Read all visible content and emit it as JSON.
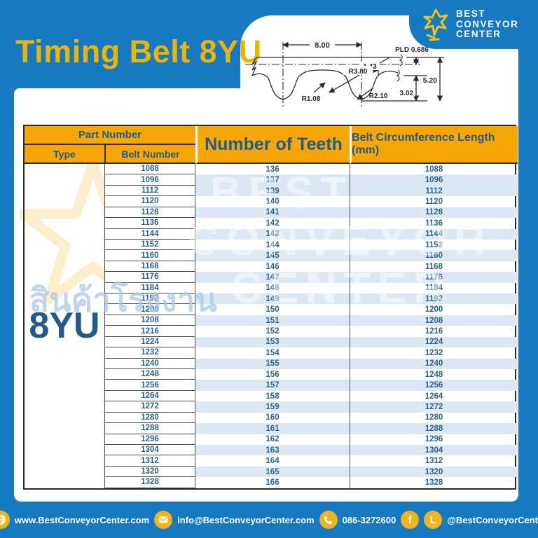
{
  "page": {
    "title": "Timing Belt 8YU"
  },
  "logo": {
    "icon": "star-figure-icon",
    "line1": "Best",
    "line2": "Conveyor",
    "line3": "Center"
  },
  "diagram": {
    "pitch": "8.00",
    "tip_width": "1.43",
    "pld": "PLD 0.686",
    "radius_flank": "R3.80",
    "radius_shoulder": "R1.08",
    "radius_root": "R2.10",
    "tooth_height": "3.02",
    "belt_height": "5.20"
  },
  "table": {
    "headers": {
      "part_number": "Part Number",
      "type": "Type",
      "belt_number": "Belt Number",
      "teeth": "Number of Teeth",
      "length": "Belt Circumference Length (mm)"
    },
    "type_value": "8YU",
    "rows": [
      [
        1088,
        136,
        1088
      ],
      [
        1096,
        137,
        1096
      ],
      [
        1112,
        139,
        1112
      ],
      [
        1120,
        140,
        1120
      ],
      [
        1128,
        141,
        1128
      ],
      [
        1136,
        142,
        1136
      ],
      [
        1144,
        143,
        1144
      ],
      [
        1152,
        144,
        1152
      ],
      [
        1160,
        145,
        1160
      ],
      [
        1168,
        146,
        1168
      ],
      [
        1176,
        147,
        1176
      ],
      [
        1184,
        148,
        1184
      ],
      [
        1192,
        149,
        1192
      ],
      [
        1200,
        150,
        1200
      ],
      [
        1208,
        151,
        1208
      ],
      [
        1216,
        152,
        1216
      ],
      [
        1224,
        153,
        1224
      ],
      [
        1232,
        154,
        1232
      ],
      [
        1240,
        155,
        1240
      ],
      [
        1248,
        156,
        1248
      ],
      [
        1256,
        157,
        1256
      ],
      [
        1264,
        158,
        1264
      ],
      [
        1272,
        159,
        1272
      ],
      [
        1280,
        160,
        1280
      ],
      [
        1288,
        161,
        1288
      ],
      [
        1296,
        162,
        1296
      ],
      [
        1304,
        163,
        1304
      ],
      [
        1312,
        164,
        1312
      ],
      [
        1320,
        165,
        1320
      ],
      [
        1328,
        166,
        1328
      ]
    ]
  },
  "watermark": {
    "thai": "สินค้าโรงงาน",
    "lines": [
      "BEST",
      "CONVEYOR",
      "CENTER"
    ]
  },
  "footer": {
    "website": "www.BestConveyorCenter.com",
    "email": "info@BestConveyorCenter.com",
    "phone": "086-3272600",
    "social": "@BestConveyorCenter"
  },
  "colors": {
    "background_blue": "#1779BF",
    "header_orange": "#F7A606",
    "title_yellow": "#E9B40C",
    "icon_yellow": "#F0B41E",
    "dark_blue_text": "#235C8A",
    "stripe_blue": "#DCE9F5",
    "border_dark": "#2B2B2B"
  }
}
